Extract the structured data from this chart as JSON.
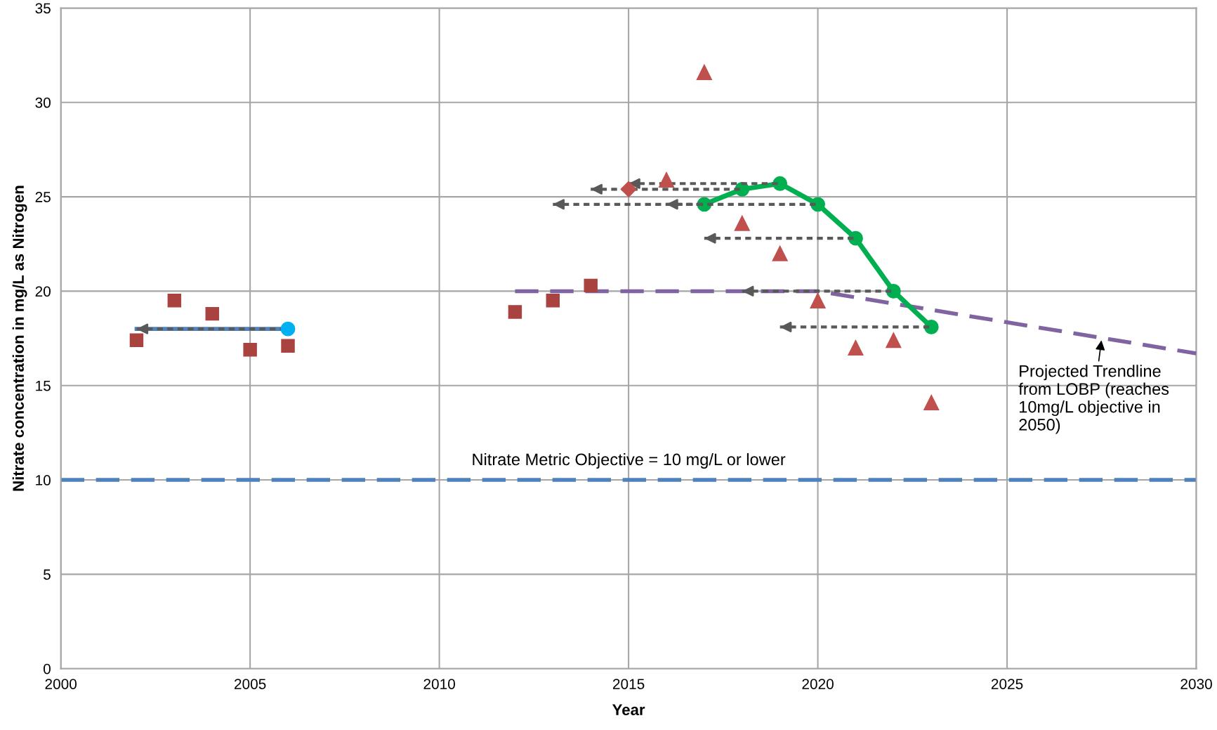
{
  "chart_data": {
    "type": "scatter",
    "xlabel": "Year",
    "ylabel": "Nitrate concentration in mg/L as Nitrogen",
    "xlim": [
      2000,
      2030
    ],
    "xticks": [
      2000,
      2005,
      2010,
      2015,
      2020,
      2025,
      2030
    ],
    "ylim": [
      0,
      35
    ],
    "yticks": [
      0,
      5,
      10,
      15,
      20,
      25,
      30,
      35
    ],
    "grid": true,
    "legend": false,
    "series": [
      {
        "marker": "square",
        "color": "#a9433f",
        "x": [
          2002,
          2003,
          2004,
          2005,
          2006,
          2012,
          2013,
          2014
        ],
        "values": [
          17.4,
          19.5,
          18.8,
          16.9,
          17.1,
          18.9,
          19.5,
          20.3
        ]
      },
      {
        "marker": "triangle",
        "color": "#c0504d",
        "x": [
          2016,
          2017,
          2018,
          2019,
          2020,
          2021,
          2022,
          2023
        ],
        "values": [
          25.9,
          31.6,
          23.6,
          22.0,
          19.5,
          17.0,
          17.4,
          14.1
        ]
      },
      {
        "type": "scatter",
        "marker": "diamond",
        "color": "#c0504d",
        "x": [
          2015
        ],
        "values": [
          25.4
        ]
      },
      {
        "type": "line",
        "marker": "none",
        "line_style": "solid",
        "color": "#4f81bd",
        "x": [
          2002,
          2006
        ],
        "values": [
          18.0,
          18.0
        ]
      },
      {
        "type": "line",
        "marker": "none",
        "line_style": "dashed",
        "color": "#8064a2",
        "x": [
          2012,
          2020,
          2030
        ],
        "values": [
          20.0,
          20.0,
          16.7
        ]
      },
      {
        "type": "scatter",
        "marker": "circle",
        "color": "#00b0f0",
        "x": [
          2006
        ],
        "values": [
          18.0
        ],
        "xerrors": [
          [
            2002,
            2006
          ]
        ]
      },
      {
        "type": "line",
        "marker": "circle",
        "line_style": "solid",
        "color": "#00b050",
        "x": [
          2017,
          2018,
          2019,
          2020,
          2021,
          2022,
          2023
        ],
        "values": [
          24.6,
          25.4,
          25.7,
          24.6,
          22.8,
          20.0,
          18.1
        ],
        "xerrors": [
          [
            2013,
            2017
          ],
          [
            2014,
            2018
          ],
          [
            2015,
            2019
          ],
          [
            2016,
            2020
          ],
          [
            2017,
            2021
          ],
          [
            2018,
            2022
          ],
          [
            2019,
            2023
          ]
        ]
      }
    ],
    "ref_lines": [
      {
        "axis": "y",
        "value": 10,
        "label": "Nitrate Metric Objective = 10 mg/L or lower",
        "color": "#4f81bd",
        "line_style": "dashed"
      }
    ],
    "annotations": [
      {
        "text": "Projected Trendline\nfrom LOBP (reaches\n10mg/L objective in\n2050)",
        "x": 2027.5,
        "y": 17.5
      }
    ]
  }
}
